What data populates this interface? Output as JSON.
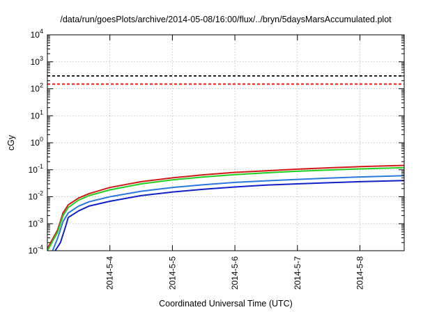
{
  "chart_data": {
    "type": "line",
    "title": "/data/run/goesPlots/archive/2014-05-08/16:00/flux/../bryn/5daysMarsAccumulated.plot",
    "xlabel": "Coordinated Universal Time (UTC)",
    "ylabel": "cGy",
    "x_scale": "time",
    "y_scale": "log",
    "xlim": [
      "2014-05-03 00:00",
      "2014-05-08 17:00"
    ],
    "ylim": [
      0.0001,
      10000
    ],
    "grid": true,
    "legend": "none",
    "x_ticks": [
      {
        "value": "2014-05-04 00:00",
        "label": "2014-5-4"
      },
      {
        "value": "2014-05-05 00:00",
        "label": "2014-5-5"
      },
      {
        "value": "2014-05-06 00:00",
        "label": "2014-5-6"
      },
      {
        "value": "2014-05-07 00:00",
        "label": "2014-5-7"
      },
      {
        "value": "2014-05-08 00:00",
        "label": "2014-5-8"
      }
    ],
    "y_ticks": [
      {
        "value": 0.0001,
        "base": "10",
        "exp": "-4"
      },
      {
        "value": 0.001,
        "base": "10",
        "exp": "-3"
      },
      {
        "value": 0.01,
        "base": "10",
        "exp": "-2"
      },
      {
        "value": 0.1,
        "base": "10",
        "exp": "-1"
      },
      {
        "value": 1,
        "base": "10",
        "exp": "0"
      },
      {
        "value": 10,
        "base": "10",
        "exp": "1"
      },
      {
        "value": 100,
        "base": "10",
        "exp": "2"
      },
      {
        "value": 1000,
        "base": "10",
        "exp": "3"
      },
      {
        "value": 10000,
        "base": "10",
        "exp": "4"
      }
    ],
    "reference_lines": [
      {
        "y": 300,
        "color": "#000000",
        "style": "dashed"
      },
      {
        "y": 150,
        "color": "#ff0000",
        "style": "dashed"
      }
    ],
    "series": [
      {
        "color": "#d01818",
        "x": [
          "2014-05-03 00:00",
          "2014-05-03 04:00",
          "2014-05-03 06:00",
          "2014-05-03 08:00",
          "2014-05-03 12:00",
          "2014-05-03 16:00",
          "2014-05-04 00:00",
          "2014-05-04 12:00",
          "2014-05-05 00:00",
          "2014-05-05 12:00",
          "2014-05-06 00:00",
          "2014-05-06 12:00",
          "2014-05-07 00:00",
          "2014-05-07 12:00",
          "2014-05-08 00:00",
          "2014-05-08 17:00"
        ],
        "y": [
          0.00012,
          0.0006,
          0.0025,
          0.005,
          0.009,
          0.013,
          0.022,
          0.036,
          0.05,
          0.065,
          0.08,
          0.092,
          0.105,
          0.118,
          0.13,
          0.145
        ]
      },
      {
        "color": "#20d020",
        "x": [
          "2014-05-03 00:00",
          "2014-05-03 04:00",
          "2014-05-03 06:00",
          "2014-05-03 08:00",
          "2014-05-03 12:00",
          "2014-05-03 16:00",
          "2014-05-04 00:00",
          "2014-05-04 12:00",
          "2014-05-05 00:00",
          "2014-05-05 12:00",
          "2014-05-06 00:00",
          "2014-05-06 12:00",
          "2014-05-07 00:00",
          "2014-05-07 12:00",
          "2014-05-08 00:00",
          "2014-05-08 17:00"
        ],
        "y": [
          0.0001,
          0.0005,
          0.002,
          0.004,
          0.0075,
          0.011,
          0.018,
          0.03,
          0.042,
          0.054,
          0.066,
          0.077,
          0.088,
          0.098,
          0.108,
          0.12
        ]
      },
      {
        "color": "#2878e0",
        "x": [
          "2014-05-03 02:00",
          "2014-05-03 04:00",
          "2014-05-03 06:00",
          "2014-05-03 08:00",
          "2014-05-03 12:00",
          "2014-05-03 16:00",
          "2014-05-04 00:00",
          "2014-05-04 12:00",
          "2014-05-05 00:00",
          "2014-05-05 12:00",
          "2014-05-06 00:00",
          "2014-05-06 12:00",
          "2014-05-07 00:00",
          "2014-05-07 12:00",
          "2014-05-08 00:00",
          "2014-05-08 17:00"
        ],
        "y": [
          0.0001,
          0.0003,
          0.0012,
          0.0025,
          0.0045,
          0.0065,
          0.01,
          0.016,
          0.022,
          0.028,
          0.034,
          0.039,
          0.044,
          0.049,
          0.054,
          0.06
        ]
      },
      {
        "color": "#1020c8",
        "x": [
          "2014-05-03 03:00",
          "2014-05-03 05:00",
          "2014-05-03 07:00",
          "2014-05-03 08:00",
          "2014-05-03 12:00",
          "2014-05-03 16:00",
          "2014-05-04 00:00",
          "2014-05-04 12:00",
          "2014-05-05 00:00",
          "2014-05-05 12:00",
          "2014-05-06 00:00",
          "2014-05-06 12:00",
          "2014-05-07 00:00",
          "2014-05-07 12:00",
          "2014-05-08 00:00",
          "2014-05-08 17:00"
        ],
        "y": [
          0.0001,
          0.0002,
          0.0008,
          0.0017,
          0.003,
          0.0045,
          0.0068,
          0.011,
          0.015,
          0.019,
          0.023,
          0.027,
          0.03,
          0.033,
          0.036,
          0.04
        ]
      }
    ]
  }
}
